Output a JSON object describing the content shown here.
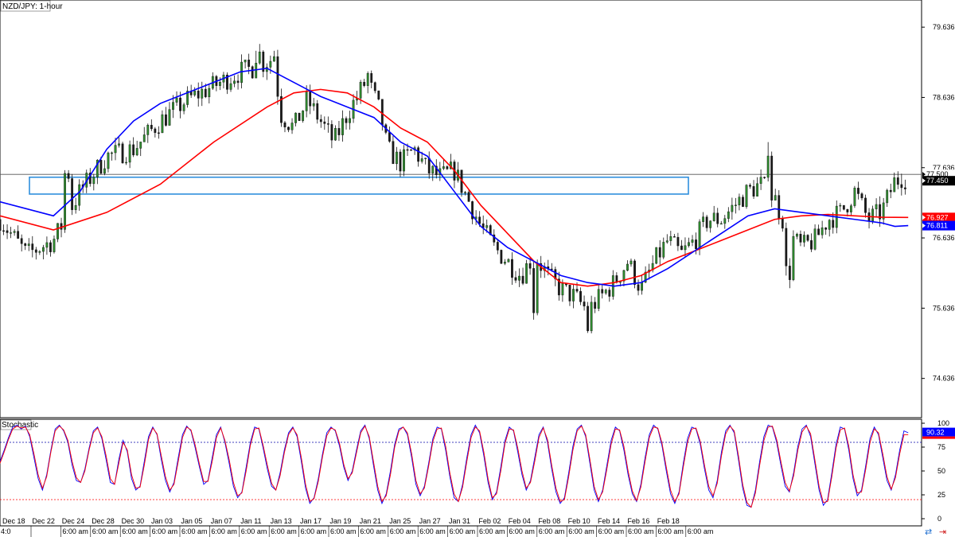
{
  "chart_data": [
    {
      "type": "candlestick",
      "title": "NZD/JPY: 1-hour",
      "ylim": [
        74.1,
        80.0
      ],
      "y_ticks": [
        "79.636",
        "78.636",
        "77.636",
        "76.636",
        "75.636",
        "74.636"
      ],
      "x_labels": [
        "Dec 18",
        "Dec 22",
        "Dec 24",
        "Dec 28",
        "Dec 30",
        "Jan 03",
        "Jan 05",
        "Jan 07",
        "Jan 11",
        "Jan 13",
        "Jan 17",
        "Jan 19",
        "Jan 21",
        "Jan 25",
        "Jan 27",
        "Jan 31",
        "Feb 02",
        "Feb 04",
        "Feb 08",
        "Feb 10",
        "Feb 14",
        "Feb 16",
        "Feb 18"
      ],
      "x_sublabels": [
        "4:0",
        "6:00 am",
        "6:00 am",
        "6:00 am",
        "6:00 am",
        "6:00 am",
        "6:00 am",
        "6:00 am",
        "6:00 am",
        "6:00 am",
        "6:00 am",
        "6:00 am",
        "6:00 am",
        "6:00 am",
        "6:00 am",
        "6:00 am",
        "6:00 am",
        "6:00 am",
        "6:00 am",
        "6:00 am",
        "6:00 am",
        "6:00 am",
        "6:00 am"
      ],
      "price": {
        "anchors": [
          [
            0,
            76.9
          ],
          [
            2,
            76.4
          ],
          [
            4,
            76.6
          ],
          [
            6,
            77.3
          ],
          [
            8,
            77.8
          ],
          [
            10,
            77.9
          ],
          [
            12,
            78.3
          ],
          [
            14,
            78.6
          ],
          [
            16,
            78.8
          ],
          [
            18,
            79.0
          ],
          [
            19.5,
            79.1
          ],
          [
            20.5,
            79.2
          ],
          [
            21,
            78.4
          ],
          [
            22,
            78.2
          ],
          [
            23,
            78.6
          ],
          [
            24,
            78.3
          ],
          [
            25,
            78.0
          ],
          [
            26,
            78.4
          ],
          [
            27.5,
            78.9
          ],
          [
            28.5,
            78.4
          ],
          [
            29,
            77.9
          ],
          [
            30,
            77.7
          ],
          [
            31,
            77.9
          ],
          [
            32,
            77.6
          ],
          [
            33,
            77.5
          ],
          [
            34,
            77.6
          ],
          [
            35,
            77.2
          ],
          [
            36,
            76.8
          ],
          [
            37,
            76.5
          ],
          [
            38,
            76.3
          ],
          [
            39,
            76.1
          ],
          [
            40,
            76.4
          ],
          [
            41,
            76.1
          ],
          [
            42,
            75.9
          ],
          [
            43,
            75.8
          ],
          [
            44,
            75.6
          ],
          [
            45,
            75.8
          ],
          [
            46,
            76.0
          ],
          [
            47,
            76.3
          ],
          [
            48,
            75.9
          ],
          [
            49,
            76.3
          ],
          [
            50,
            76.6
          ],
          [
            51,
            76.4
          ],
          [
            52,
            76.6
          ],
          [
            53,
            76.9
          ],
          [
            54,
            76.9
          ],
          [
            55,
            77.1
          ],
          [
            56,
            77.3
          ],
          [
            57,
            77.4
          ],
          [
            58,
            77.2
          ],
          [
            59,
            76.7
          ],
          [
            60,
            76.5
          ],
          [
            61,
            76.6
          ],
          [
            62,
            76.9
          ],
          [
            63,
            77.0
          ],
          [
            64,
            77.3
          ],
          [
            65,
            76.9
          ],
          [
            66,
            77.0
          ],
          [
            67,
            77.45
          ],
          [
            68,
            77.5
          ]
        ],
        "markers": [
          [
            5,
            77.6,
            "hi"
          ],
          [
            19.3,
            79.3,
            "hi"
          ],
          [
            20.5,
            79.3,
            "hi"
          ],
          [
            27.5,
            79.0,
            "hi"
          ],
          [
            40,
            75.6,
            "lo"
          ],
          [
            44,
            75.3,
            "lo"
          ],
          [
            59,
            76.1,
            "lo"
          ],
          [
            57.6,
            78.0,
            "hi"
          ],
          [
            67.6,
            77.55,
            "hi"
          ]
        ],
        "last": 77.45,
        "level_label": "77.500",
        "last_color": "#000000",
        "candle_colors": {
          "up": "#2e8b2e",
          "down": "#1a1a1a"
        }
      },
      "resistance_zone": {
        "y_range": [
          77.26,
          77.5
        ],
        "color": "#2f8fdd"
      },
      "series": [
        {
          "color": "#ff0000",
          "values": [
            [
              0,
              76.95
            ],
            [
              4,
              76.75
            ],
            [
              8,
              77.0
            ],
            [
              12,
              77.4
            ],
            [
              16,
              78.0
            ],
            [
              20,
              78.5
            ],
            [
              22,
              78.7
            ],
            [
              24,
              78.75
            ],
            [
              26,
              78.7
            ],
            [
              28,
              78.5
            ],
            [
              30,
              78.2
            ],
            [
              32,
              78.0
            ],
            [
              34,
              77.6
            ],
            [
              36,
              77.1
            ],
            [
              38,
              76.7
            ],
            [
              40,
              76.3
            ],
            [
              42,
              76.0
            ],
            [
              44,
              75.95
            ],
            [
              46,
              76.0
            ],
            [
              48,
              76.1
            ],
            [
              50,
              76.3
            ],
            [
              52,
              76.45
            ],
            [
              54,
              76.6
            ],
            [
              56,
              76.75
            ],
            [
              58,
              76.9
            ],
            [
              60,
              76.95
            ],
            [
              62,
              76.97
            ],
            [
              64,
              76.95
            ],
            [
              66,
              76.93
            ],
            [
              68,
              76.927
            ]
          ],
          "tag": "76.927"
        },
        {
          "color": "#0000ff",
          "values": [
            [
              0,
              77.15
            ],
            [
              4,
              76.95
            ],
            [
              6,
              77.3
            ],
            [
              8,
              77.9
            ],
            [
              10,
              78.3
            ],
            [
              12,
              78.55
            ],
            [
              14,
              78.7
            ],
            [
              16,
              78.85
            ],
            [
              18,
              79.0
            ],
            [
              20,
              79.05
            ],
            [
              22,
              78.85
            ],
            [
              24,
              78.65
            ],
            [
              26,
              78.5
            ],
            [
              28,
              78.35
            ],
            [
              30,
              78.0
            ],
            [
              32,
              77.8
            ],
            [
              34,
              77.3
            ],
            [
              36,
              76.8
            ],
            [
              38,
              76.5
            ],
            [
              40,
              76.3
            ],
            [
              42,
              76.1
            ],
            [
              44,
              76.0
            ],
            [
              46,
              75.95
            ],
            [
              48,
              76.0
            ],
            [
              50,
              76.2
            ],
            [
              52,
              76.45
            ],
            [
              54,
              76.7
            ],
            [
              56,
              76.95
            ],
            [
              58,
              77.05
            ],
            [
              60,
              77.0
            ],
            [
              62,
              76.95
            ],
            [
              64,
              76.9
            ],
            [
              66,
              76.85
            ],
            [
              67,
              76.8
            ],
            [
              68,
              76.811
            ]
          ],
          "tag": "76.811"
        }
      ]
    },
    {
      "type": "line",
      "title": "Stochastic",
      "ylim": [
        0,
        100
      ],
      "y_ticks": [
        "100",
        "75",
        "50",
        "25",
        "0"
      ],
      "levels": [
        80,
        20
      ],
      "level_colors": {
        "80": "#0000aa",
        "20": "#ff0000"
      },
      "tag": "90.32",
      "series": [
        {
          "color": "#0000ff",
          "values": [
            60,
            72,
            85,
            96,
            98,
            94,
            97,
            86,
            64,
            42,
            30,
            46,
            72,
            94,
            98,
            92,
            80,
            56,
            40,
            38,
            52,
            74,
            92,
            96,
            84,
            62,
            38,
            36,
            62,
            82,
            70,
            42,
            30,
            34,
            60,
            86,
            96,
            88,
            62,
            40,
            28,
            38,
            64,
            88,
            97,
            92,
            74,
            54,
            36,
            40,
            64,
            88,
            96,
            80,
            58,
            34,
            22,
            28,
            54,
            80,
            96,
            94,
            74,
            52,
            34,
            30,
            48,
            72,
            90,
            96,
            86,
            60,
            32,
            16,
            22,
            42,
            68,
            90,
            96,
            92,
            76,
            54,
            40,
            50,
            72,
            92,
            98,
            84,
            56,
            30,
            16,
            26,
            50,
            78,
            94,
            96,
            88,
            64,
            36,
            24,
            34,
            58,
            84,
            96,
            94,
            72,
            44,
            22,
            18,
            36,
            64,
            88,
            98,
            90,
            66,
            38,
            20,
            28,
            54,
            82,
            96,
            92,
            70,
            46,
            30,
            40,
            64,
            88,
            96,
            80,
            52,
            28,
            16,
            22,
            48,
            76,
            94,
            98,
            86,
            58,
            30,
            18,
            30,
            56,
            82,
            96,
            92,
            72,
            46,
            26,
            18,
            36,
            64,
            88,
            98,
            94,
            76,
            50,
            26,
            16,
            28,
            58,
            84,
            96,
            94,
            78,
            52,
            30,
            22,
            40,
            70,
            92,
            98,
            90,
            62,
            32,
            14,
            12,
            30,
            60,
            86,
            98,
            96,
            80,
            56,
            34,
            28,
            48,
            76,
            94,
            98,
            86,
            58,
            30,
            14,
            20,
            48,
            78,
            96,
            94,
            72,
            42,
            24,
            30,
            56,
            84,
            96,
            88,
            64,
            40,
            30,
            46,
            72,
            92,
            90
          ]
        },
        {
          "color": "#ff0000",
          "values": [
            58,
            70,
            83,
            94,
            97,
            95,
            96,
            88,
            68,
            46,
            32,
            44,
            70,
            92,
            97,
            93,
            82,
            60,
            43,
            38,
            50,
            72,
            90,
            95,
            86,
            66,
            42,
            36,
            58,
            80,
            72,
            46,
            32,
            33,
            56,
            83,
            95,
            89,
            66,
            44,
            30,
            36,
            60,
            85,
            96,
            93,
            77,
            57,
            39,
            39,
            60,
            85,
            95,
            82,
            62,
            38,
            24,
            27,
            50,
            77,
            94,
            95,
            77,
            56,
            37,
            30,
            45,
            69,
            88,
            95,
            88,
            64,
            36,
            18,
            21,
            39,
            65,
            87,
            95,
            93,
            79,
            57,
            42,
            48,
            69,
            90,
            97,
            86,
            60,
            34,
            18,
            24,
            46,
            75,
            92,
            96,
            90,
            68,
            40,
            26,
            32,
            55,
            81,
            94,
            95,
            76,
            48,
            26,
            18,
            33,
            60,
            85,
            96,
            92,
            70,
            42,
            22,
            26,
            50,
            79,
            94,
            93,
            74,
            50,
            32,
            38,
            60,
            85,
            95,
            83,
            56,
            32,
            18,
            20,
            44,
            72,
            92,
            97,
            88,
            62,
            34,
            20,
            28,
            52,
            78,
            94,
            93,
            76,
            50,
            29,
            19,
            33,
            60,
            85,
            96,
            95,
            79,
            54,
            30,
            18,
            26,
            54,
            80,
            94,
            95,
            81,
            56,
            34,
            24,
            37,
            66,
            89,
            97,
            92,
            66,
            36,
            17,
            12,
            27,
            56,
            82,
            96,
            97,
            83,
            60,
            38,
            29,
            45,
            72,
            91,
            97,
            89,
            62,
            34,
            17,
            18,
            44,
            74,
            93,
            95,
            76,
            46,
            27,
            28,
            52,
            80,
            94,
            90,
            68,
            44,
            31,
            43,
            68,
            88,
            88
          ]
        }
      ]
    }
  ],
  "icons": [
    "sync-icon",
    "arrow-right-icon"
  ]
}
